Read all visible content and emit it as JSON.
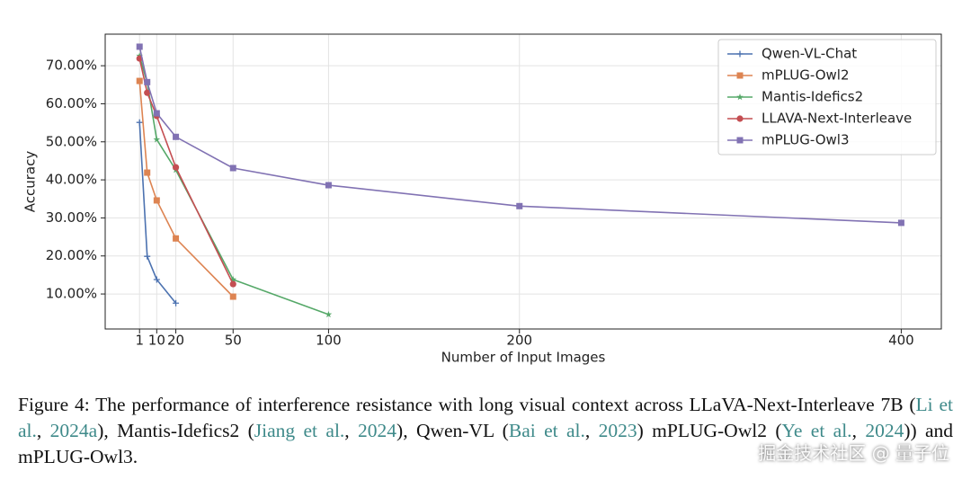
{
  "chart_data": {
    "type": "line",
    "xlabel": "Number of Input Images",
    "ylabel": "Accuracy",
    "xlim": [
      -17,
      421
    ],
    "ylim": [
      0.8,
      78.3
    ],
    "xticks": [
      1,
      10,
      20,
      50,
      100,
      200,
      400
    ],
    "yticks": [
      {
        "value": 10,
        "label": "10.00%"
      },
      {
        "value": 20,
        "label": "20.00%"
      },
      {
        "value": 30,
        "label": "30.00%"
      },
      {
        "value": 40,
        "label": "40.00%"
      },
      {
        "value": 50,
        "label": "50.00%"
      },
      {
        "value": 60,
        "label": "60.00%"
      },
      {
        "value": 70,
        "label": "70.00%"
      }
    ],
    "grid": true,
    "legend": "upper right",
    "series": [
      {
        "name": "Qwen-VL-Chat",
        "color": "#4c72b0",
        "marker": "plus",
        "x": [
          1,
          5,
          10,
          20
        ],
        "values": [
          55.1,
          19.9,
          13.8,
          7.6
        ]
      },
      {
        "name": "mPLUG-Owl2",
        "color": "#dd8452",
        "marker": "square",
        "x": [
          1,
          5,
          10,
          20,
          50
        ],
        "values": [
          66,
          41.9,
          34.6,
          24.6,
          9.3
        ]
      },
      {
        "name": "Mantis-Idefics2",
        "color": "#55a868",
        "marker": "star",
        "x": [
          1,
          5,
          10,
          20,
          50,
          100
        ],
        "values": [
          72.6,
          65.5,
          50.6,
          42.6,
          13.8,
          4.6
        ]
      },
      {
        "name": "LLAVA-Next-Interleave",
        "color": "#c44e52",
        "marker": "circle",
        "x": [
          1,
          5,
          10,
          20,
          50
        ],
        "values": [
          71.9,
          62.9,
          56.8,
          43.3,
          12.6
        ]
      },
      {
        "name": "mPLUG-Owl3",
        "color": "#8172b3",
        "marker": "square",
        "x": [
          1,
          5,
          10,
          20,
          50,
          100,
          200,
          400
        ],
        "values": [
          75,
          65.7,
          57.5,
          51.3,
          43.1,
          38.6,
          33.1,
          28.7
        ]
      }
    ]
  },
  "caption": [
    {
      "text": "Figure 4:  The performance of interference resistance with long visual context across LLaVA-Next-Interleave 7B (",
      "link": false
    },
    {
      "text": "Li et al.",
      "link": true
    },
    {
      "text": ", ",
      "link": false
    },
    {
      "text": "2024a",
      "link": true
    },
    {
      "text": "), Mantis-Idefics2 (",
      "link": false
    },
    {
      "text": "Jiang et al.",
      "link": true
    },
    {
      "text": ", ",
      "link": false
    },
    {
      "text": "2024",
      "link": true
    },
    {
      "text": "), Qwen-VL (",
      "link": false
    },
    {
      "text": "Bai et al.",
      "link": true
    },
    {
      "text": ", ",
      "link": false
    },
    {
      "text": "2023",
      "link": true
    },
    {
      "text": ") mPLUG-Owl2 (",
      "link": false
    },
    {
      "text": "Ye et al.",
      "link": true
    },
    {
      "text": ", ",
      "link": false
    },
    {
      "text": "2024",
      "link": true
    },
    {
      "text": ")) and mPLUG-Owl3.",
      "link": false
    }
  ],
  "watermark": "掘金技术社区 @ 量子位"
}
